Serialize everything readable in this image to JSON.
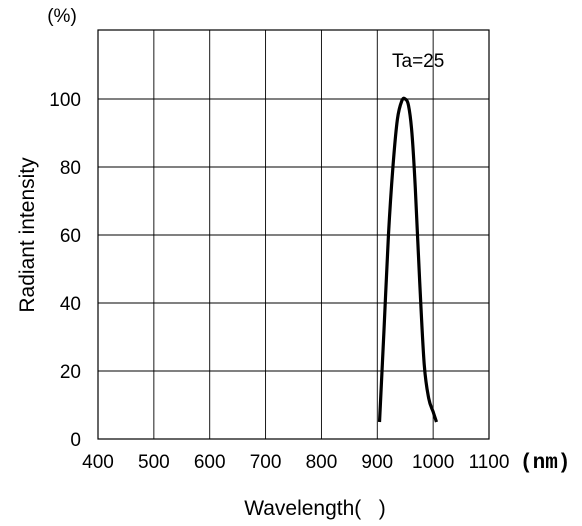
{
  "chart_data": {
    "type": "line",
    "ylabel": "Radiant intensity",
    "y_unit": "(%)",
    "xlabel": "Wavelength(   )",
    "x_unit": "(nm)",
    "annotation": "Ta=25",
    "xlim": [
      400,
      1100
    ],
    "ylim": [
      0,
      115
    ],
    "x_ticks": [
      "400",
      "500",
      "600",
      "700",
      "800",
      "900",
      "1000",
      "1100"
    ],
    "y_ticks": [
      "0",
      "20",
      "40",
      "60",
      "80",
      "100"
    ],
    "grid": true,
    "series": [
      {
        "x": [
          904,
          912,
          920,
          928,
          936,
          944,
          950,
          956,
          962,
          968,
          976,
          984,
          992,
          1000,
          1006
        ],
        "y": [
          5,
          32,
          60,
          80,
          94,
          99.5,
          100,
          98,
          90,
          74,
          46,
          22,
          12,
          8,
          5
        ]
      }
    ],
    "line_color": "#000000"
  }
}
